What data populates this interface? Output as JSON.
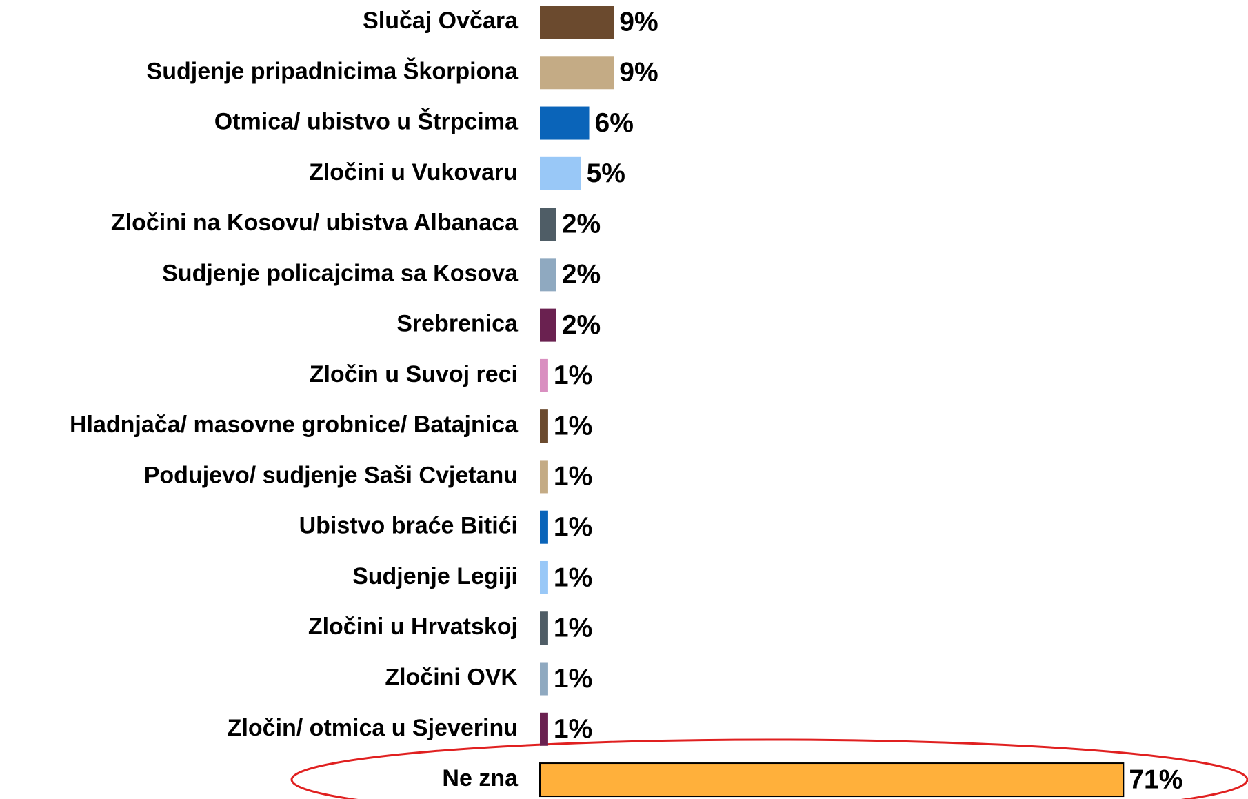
{
  "chart_data": {
    "type": "bar",
    "orientation": "horizontal",
    "categories": [
      "Slučaj Ovčara",
      "Sudjenje pripadnicima Škorpiona",
      "Otmica/ ubistvo u Štrpcima",
      "Zločini u Vukovaru",
      "Zločini na Kosovu/ ubistva Albanaca",
      "Sudjenje policajcima sa Kosova",
      "Srebrenica",
      "Zločin u Suvoj reci",
      "Hladnjača/ masovne grobnice/ Batajnica",
      "Podujevo/ sudjenje Saši Cvjetanu",
      "Ubistvo braće Bitići",
      "Sudjenje Legiji",
      "Zločini u Hrvatskoj",
      "Zločini OVK",
      "Zločin/ otmica u Sjeverinu",
      "Ne zna"
    ],
    "values": [
      9,
      9,
      6,
      5,
      2,
      2,
      2,
      1,
      1,
      1,
      1,
      1,
      1,
      1,
      1,
      71
    ],
    "value_labels": [
      "9%",
      "9%",
      "6%",
      "5%",
      "2%",
      "2%",
      "2%",
      "1%",
      "1%",
      "1%",
      "1%",
      "1%",
      "1%",
      "1%",
      "1%",
      "71%"
    ],
    "colors": [
      "#6b4a2e",
      "#c4ab85",
      "#0a64b9",
      "#99c8f7",
      "#4f5d66",
      "#8fa9c0",
      "#6a2150",
      "#d98fc0",
      "#6b4a2e",
      "#c4ab85",
      "#0a64b9",
      "#99c8f7",
      "#4f5d66",
      "#8fa9c0",
      "#6a2150",
      "#ffb03b"
    ]
  }
}
